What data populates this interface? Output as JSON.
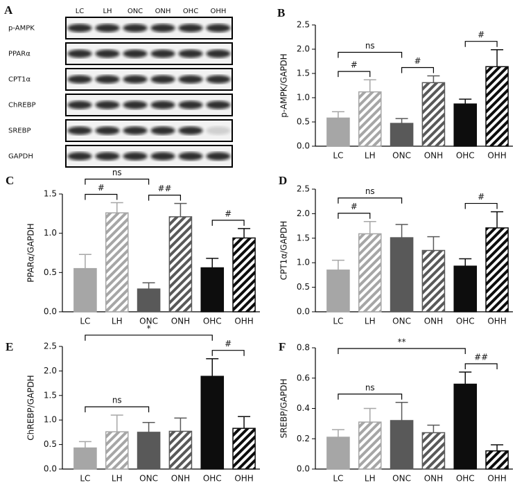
{
  "blot": {
    "panel": "A",
    "lanes": [
      "LC",
      "LH",
      "ONC",
      "ONH",
      "OHC",
      "OHH"
    ],
    "rows": [
      "p-AMPK",
      "PPARα",
      "CPT1α",
      "ChREBP",
      "SREBP",
      "GAPDH"
    ]
  },
  "chart_data": [
    {
      "type": "bar",
      "panel": "B",
      "ylabel": "p-AMPK/GAPDH",
      "categories": [
        "LC",
        "LH",
        "ONC",
        "ONH",
        "OHC",
        "OHH"
      ],
      "values": [
        0.58,
        1.12,
        0.47,
        1.31,
        0.87,
        1.64
      ],
      "errors": [
        0.13,
        0.25,
        0.1,
        0.14,
        0.1,
        0.35
      ],
      "colors": [
        "#a6a6a6",
        "#a6a6a6",
        "#595959",
        "#595959",
        "#0d0d0d",
        "#0d0d0d"
      ],
      "hatched": [
        false,
        true,
        false,
        true,
        false,
        true
      ],
      "ylim": [
        0,
        2.5
      ],
      "yticks": [
        {
          "value": 0,
          "label": "0.0"
        },
        0.5,
        {
          "value": 1,
          "label": "1.0"
        },
        1.5,
        {
          "value": 2,
          "label": "2.0"
        },
        2.5
      ],
      "annotations": [
        {
          "label": "#",
          "from": "LC",
          "to": "LH"
        },
        {
          "label": "#",
          "from": "ONC",
          "to": "ONH"
        },
        {
          "label": "ns",
          "from": "LC",
          "to": "ONC"
        },
        {
          "label": "#",
          "from": "OHC",
          "to": "OHH"
        }
      ]
    },
    {
      "type": "bar",
      "panel": "C",
      "ylabel": "PPARα/GAPDH",
      "categories": [
        "LC",
        "LH",
        "ONC",
        "ONH",
        "OHC",
        "OHH"
      ],
      "values": [
        0.55,
        1.26,
        0.29,
        1.21,
        0.56,
        0.94
      ],
      "errors": [
        0.18,
        0.13,
        0.08,
        0.17,
        0.12,
        0.12
      ],
      "colors": [
        "#a6a6a6",
        "#a6a6a6",
        "#595959",
        "#595959",
        "#0d0d0d",
        "#0d0d0d"
      ],
      "hatched": [
        false,
        true,
        false,
        true,
        false,
        true
      ],
      "ylim": [
        0,
        1.5
      ],
      "yticks": [
        {
          "value": 0,
          "label": "0.0"
        },
        0.5,
        {
          "value": 1,
          "label": "1.0"
        },
        1.5
      ],
      "annotations": [
        {
          "label": "#",
          "from": "LC",
          "to": "LH"
        },
        {
          "label": "##",
          "from": "ONC",
          "to": "ONH"
        },
        {
          "label": "ns",
          "from": "LC",
          "to": "ONC"
        },
        {
          "label": "#",
          "from": "OHC",
          "to": "OHH"
        }
      ]
    },
    {
      "type": "bar",
      "panel": "D",
      "ylabel": "CPT1α/GAPDH",
      "categories": [
        "LC",
        "LH",
        "ONC",
        "ONH",
        "OHC",
        "OHH"
      ],
      "values": [
        0.85,
        1.59,
        1.51,
        1.25,
        0.93,
        1.71
      ],
      "errors": [
        0.2,
        0.25,
        0.27,
        0.28,
        0.15,
        0.33
      ],
      "colors": [
        "#a6a6a6",
        "#a6a6a6",
        "#595959",
        "#595959",
        "#0d0d0d",
        "#0d0d0d"
      ],
      "hatched": [
        false,
        true,
        false,
        true,
        false,
        true
      ],
      "ylim": [
        0,
        2.5
      ],
      "yticks": [
        {
          "value": 0,
          "label": "0.0"
        },
        0.5,
        {
          "value": 1,
          "label": "1.0"
        },
        1.5,
        {
          "value": 2,
          "label": "2.0"
        },
        2.5
      ],
      "annotations": [
        {
          "label": "#",
          "from": "LC",
          "to": "LH"
        },
        {
          "label": "ns",
          "from": "LC",
          "to": "ONC"
        },
        {
          "label": "#",
          "from": "OHC",
          "to": "OHH"
        }
      ]
    },
    {
      "type": "bar",
      "panel": "E",
      "ylabel": "ChREBP/GAPDH",
      "categories": [
        "LC",
        "LH",
        "ONC",
        "ONH",
        "OHC",
        "OHH"
      ],
      "values": [
        0.43,
        0.76,
        0.75,
        0.77,
        1.89,
        0.83
      ],
      "errors": [
        0.13,
        0.34,
        0.2,
        0.27,
        0.36,
        0.24
      ],
      "colors": [
        "#a6a6a6",
        "#a6a6a6",
        "#595959",
        "#595959",
        "#0d0d0d",
        "#0d0d0d"
      ],
      "hatched": [
        false,
        true,
        false,
        true,
        false,
        true
      ],
      "ylim": [
        0,
        2.5
      ],
      "yticks": [
        {
          "value": 0,
          "label": "0.0"
        },
        0.5,
        {
          "value": 1,
          "label": "1.0"
        },
        1.5,
        {
          "value": 2,
          "label": "2.0"
        },
        2.5
      ],
      "annotations": [
        {
          "label": "ns",
          "from": "LC",
          "to": "ONC"
        },
        {
          "label": "#",
          "from": "OHC",
          "to": "OHH"
        },
        {
          "label": "*",
          "from": "LC",
          "to": "OHC"
        }
      ]
    },
    {
      "type": "bar",
      "panel": "F",
      "ylabel": "SREBP/GAPDH",
      "categories": [
        "LC",
        "LH",
        "ONC",
        "ONH",
        "OHC",
        "OHH"
      ],
      "values": [
        0.21,
        0.31,
        0.32,
        0.24,
        0.56,
        0.12
      ],
      "errors": [
        0.05,
        0.09,
        0.12,
        0.05,
        0.08,
        0.04
      ],
      "colors": [
        "#a6a6a6",
        "#a6a6a6",
        "#595959",
        "#595959",
        "#0d0d0d",
        "#0d0d0d"
      ],
      "hatched": [
        false,
        true,
        false,
        true,
        false,
        true
      ],
      "ylim": [
        0,
        0.8
      ],
      "yticks": [
        {
          "value": 0,
          "label": "0.0"
        },
        0.2,
        0.4,
        0.6,
        0.8
      ],
      "annotations": [
        {
          "label": "ns",
          "from": "LC",
          "to": "ONC"
        },
        {
          "label": "##",
          "from": "OHC",
          "to": "OHH"
        },
        {
          "label": "**",
          "from": "LC",
          "to": "OHC"
        }
      ]
    }
  ]
}
